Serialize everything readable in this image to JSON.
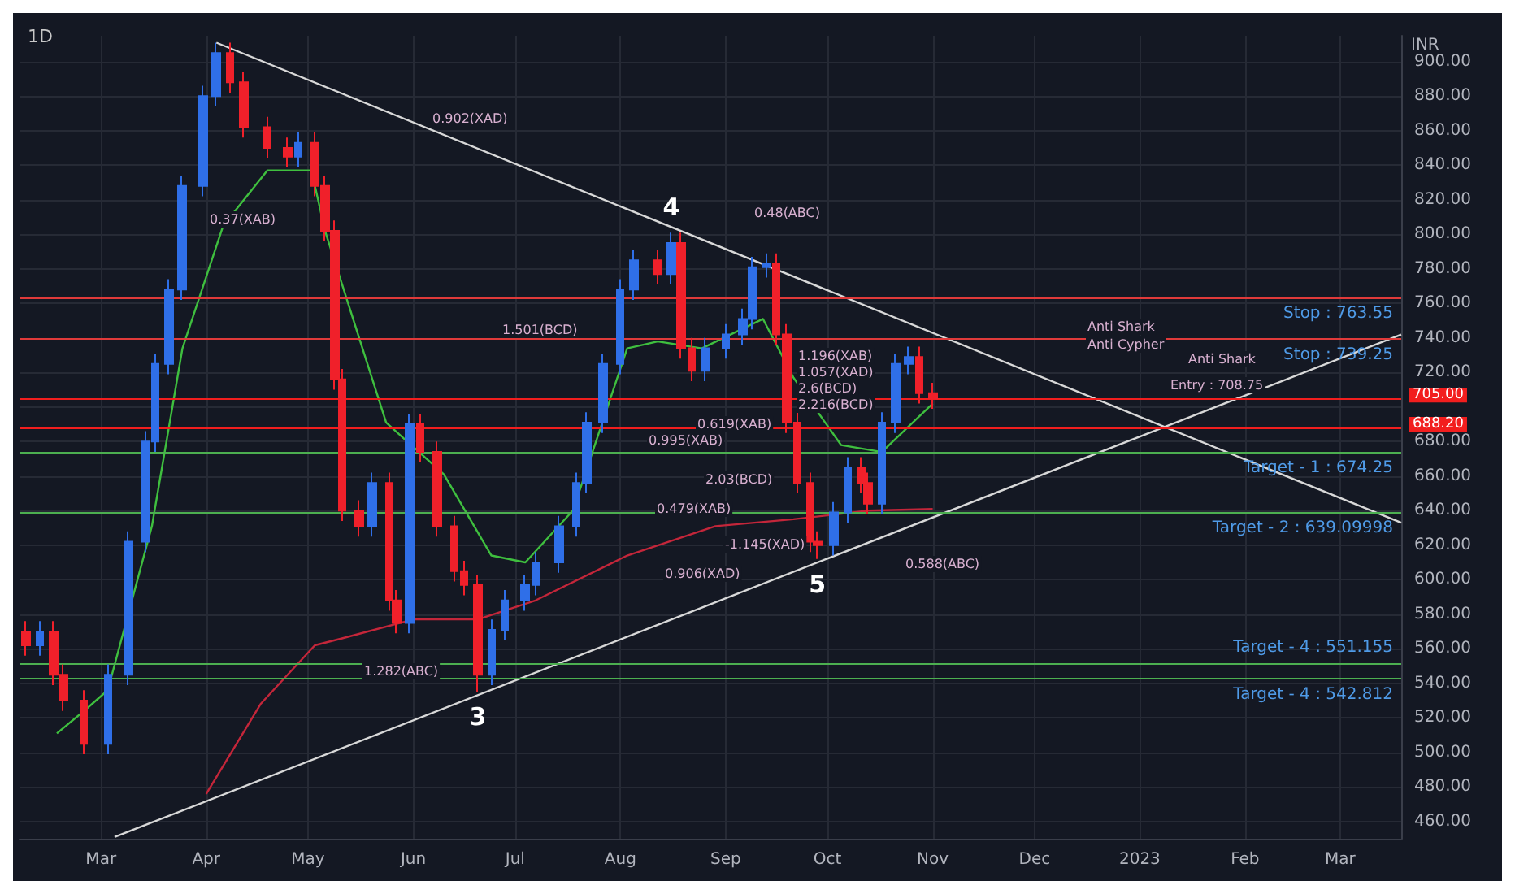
{
  "chart_data": {
    "type": "candlestick",
    "title": "1D",
    "ylabel": "INR",
    "x": [
      "2022-02-07",
      "2022-02-11",
      "2022-02-15",
      "2022-02-18",
      "2022-02-24",
      "2022-03-03",
      "2022-03-09",
      "2022-03-14",
      "2022-03-17",
      "2022-03-21",
      "2022-03-25",
      "2022-03-31",
      "2022-04-04",
      "2022-04-08",
      "2022-04-12",
      "2022-04-19",
      "2022-04-25",
      "2022-04-28",
      "2022-05-03",
      "2022-05-06",
      "2022-05-09",
      "2022-05-11",
      "2022-05-16",
      "2022-05-20",
      "2022-05-25",
      "2022-05-27",
      "2022-05-31",
      "2022-06-03",
      "2022-06-08",
      "2022-06-13",
      "2022-06-16",
      "2022-06-20",
      "2022-06-24",
      "2022-06-28",
      "2022-07-04",
      "2022-07-07",
      "2022-07-14",
      "2022-07-19",
      "2022-07-22",
      "2022-07-27",
      "2022-08-01",
      "2022-08-05",
      "2022-08-12",
      "2022-08-16",
      "2022-08-19",
      "2022-08-22",
      "2022-08-26",
      "2022-09-01",
      "2022-09-06",
      "2022-09-09",
      "2022-09-13",
      "2022-09-16",
      "2022-09-19",
      "2022-09-22",
      "2022-09-26",
      "2022-09-28",
      "2022-10-03",
      "2022-10-07",
      "2022-10-11",
      "2022-10-13",
      "2022-10-17",
      "2022-10-21",
      "2022-10-25",
      "2022-10-28",
      "2022-11-01"
    ],
    "series": [
      {
        "ohlc": [
          [
            570,
            576,
            556,
            562
          ],
          [
            562,
            576,
            556,
            570
          ],
          [
            570,
            576,
            539,
            545
          ],
          [
            545,
            551,
            524,
            530
          ],
          [
            530,
            536,
            499,
            505
          ],
          [
            505,
            551,
            499,
            545
          ],
          [
            545,
            628,
            539,
            622
          ],
          [
            622,
            686,
            616,
            680
          ],
          [
            680,
            731,
            674,
            725
          ],
          [
            725,
            774,
            719,
            768
          ],
          [
            768,
            834,
            762,
            828
          ],
          [
            828,
            886,
            822,
            880
          ],
          [
            880,
            911,
            874,
            905
          ],
          [
            905,
            911,
            882,
            888
          ],
          [
            888,
            894,
            856,
            862
          ],
          [
            862,
            868,
            844,
            850
          ],
          [
            850,
            856,
            839,
            845
          ],
          [
            845,
            859,
            839,
            853
          ],
          [
            853,
            859,
            822,
            828
          ],
          [
            828,
            834,
            796,
            802
          ],
          [
            802,
            808,
            710,
            716
          ],
          [
            716,
            722,
            634,
            640
          ],
          [
            640,
            646,
            625,
            631
          ],
          [
            631,
            662,
            625,
            656
          ],
          [
            656,
            662,
            582,
            588
          ],
          [
            588,
            594,
            569,
            575
          ],
          [
            575,
            696,
            569,
            690
          ],
          [
            690,
            696,
            668,
            674
          ],
          [
            674,
            680,
            625,
            631
          ],
          [
            631,
            637,
            599,
            605
          ],
          [
            605,
            611,
            591,
            597
          ],
          [
            597,
            603,
            535,
            545
          ],
          [
            545,
            577,
            539,
            571
          ],
          [
            571,
            594,
            565,
            588
          ],
          [
            588,
            603,
            582,
            597
          ],
          [
            597,
            616,
            591,
            610
          ],
          [
            610,
            637,
            604,
            631
          ],
          [
            631,
            662,
            625,
            656
          ],
          [
            656,
            697,
            650,
            691
          ],
          [
            691,
            731,
            685,
            725
          ],
          [
            725,
            774,
            719,
            768
          ],
          [
            768,
            791,
            762,
            785
          ],
          [
            785,
            791,
            771,
            777
          ],
          [
            777,
            801,
            771,
            795
          ],
          [
            795,
            801,
            728,
            734
          ],
          [
            734,
            740,
            715,
            721
          ],
          [
            721,
            740,
            715,
            734
          ],
          [
            734,
            748,
            728,
            742
          ],
          [
            742,
            757,
            736,
            751
          ],
          [
            751,
            787,
            745,
            781
          ],
          [
            781,
            789,
            775,
            783
          ],
          [
            783,
            789,
            736,
            742
          ],
          [
            742,
            748,
            685,
            691
          ],
          [
            691,
            697,
            650,
            656
          ],
          [
            656,
            662,
            616,
            622
          ],
          [
            622,
            628,
            612,
            620
          ],
          [
            620,
            645,
            614,
            639
          ],
          [
            639,
            671,
            633,
            665
          ],
          [
            665,
            671,
            650,
            656
          ],
          [
            656,
            662,
            638,
            644
          ],
          [
            644,
            697,
            638,
            691
          ],
          [
            691,
            731,
            685,
            725
          ],
          [
            725,
            735,
            719,
            729
          ],
          [
            729,
            735,
            702,
            708
          ],
          [
            708,
            714,
            699,
            705
          ]
        ],
        "colors": [
          "#f0202a",
          "#2f6fe8",
          "#f0202a",
          "#f0202a",
          "#f0202a",
          "#2f6fe8",
          "#2f6fe8",
          "#2f6fe8",
          "#2f6fe8",
          "#2f6fe8",
          "#2f6fe8",
          "#2f6fe8",
          "#2f6fe8",
          "#f0202a",
          "#f0202a",
          "#f0202a",
          "#f0202a",
          "#2f6fe8",
          "#f0202a",
          "#f0202a",
          "#f0202a",
          "#f0202a",
          "#f0202a",
          "#2f6fe8",
          "#f0202a",
          "#f0202a",
          "#2f6fe8",
          "#f0202a",
          "#f0202a",
          "#f0202a",
          "#f0202a",
          "#f0202a",
          "#2f6fe8",
          "#2f6fe8",
          "#2f6fe8",
          "#2f6fe8",
          "#2f6fe8",
          "#2f6fe8",
          "#2f6fe8",
          "#2f6fe8",
          "#2f6fe8",
          "#2f6fe8",
          "#f0202a",
          "#2f6fe8",
          "#f0202a",
          "#f0202a",
          "#2f6fe8",
          "#2f6fe8",
          "#2f6fe8",
          "#2f6fe8",
          "#2f6fe8",
          "#f0202a",
          "#f0202a",
          "#f0202a",
          "#f0202a",
          "#f0202a",
          "#2f6fe8",
          "#2f6fe8",
          "#f0202a",
          "#f0202a",
          "#2f6fe8",
          "#2f6fe8",
          "#2f6fe8",
          "#f0202a",
          "#f0202a"
        ]
      },
      {
        "type": "line",
        "color": "#3fbf3f",
        "x": [
          "2022-02-16",
          "2022-02-24",
          "2022-03-03",
          "2022-03-16",
          "2022-03-25",
          "2022-04-06",
          "2022-04-19",
          "2022-05-02",
          "2022-05-06",
          "2022-05-24",
          "2022-06-10",
          "2022-06-24",
          "2022-07-04",
          "2022-07-18",
          "2022-08-03",
          "2022-08-12",
          "2022-08-25",
          "2022-09-12",
          "2022-09-21",
          "2022-10-05",
          "2022-10-17",
          "2022-11-01"
        ],
        "values": [
          511,
          524,
          536,
          631,
          734,
          805,
          837,
          837,
          802,
          691,
          661,
          614,
          610,
          640,
          734,
          738,
          734,
          751,
          717,
          678,
          674,
          702
        ]
      },
      {
        "type": "line",
        "color": "#c4263a",
        "x": [
          "2022-04-01",
          "2022-04-17",
          "2022-05-03",
          "2022-05-11",
          "2022-06-01",
          "2022-06-20",
          "2022-07-07",
          "2022-08-03",
          "2022-08-29",
          "2022-09-21",
          "2022-10-13",
          "2022-11-01"
        ],
        "values": [
          476,
          528,
          562,
          566,
          577,
          577,
          588,
          614,
          631,
          635,
          640,
          641
        ]
      },
      {
        "type": "line",
        "color": "#d8d8d8",
        "x": [
          "2022-04-04",
          "2023-03-19"
        ],
        "values": [
          911,
          633
        ]
      },
      {
        "type": "line",
        "color": "#d8d8d8",
        "x": [
          "2022-03-05",
          "2023-03-19"
        ],
        "values": [
          451,
          742
        ]
      }
    ],
    "xlim": [
      "2022-02-05",
      "2023-03-19"
    ],
    "xticks": [
      {
        "value": "2022-03-01",
        "label": "Mar"
      },
      {
        "value": "2022-04-01",
        "label": "Apr"
      },
      {
        "value": "2022-05-01",
        "label": "May"
      },
      {
        "value": "2022-06-01",
        "label": "Jun"
      },
      {
        "value": "2022-07-01",
        "label": "Jul"
      },
      {
        "value": "2022-08-01",
        "label": "Aug"
      },
      {
        "value": "2022-09-01",
        "label": "Sep"
      },
      {
        "value": "2022-10-01",
        "label": "Oct"
      },
      {
        "value": "2022-11-01",
        "label": "Nov"
      },
      {
        "value": "2022-12-01",
        "label": "Dec"
      },
      {
        "value": "2023-01-01",
        "label": "2023"
      },
      {
        "value": "2023-02-01",
        "label": "Feb"
      },
      {
        "value": "2023-03-01",
        "label": "Mar"
      }
    ],
    "ylim": [
      450,
      915
    ],
    "yticks": [
      {
        "value": 460,
        "label": "460.00"
      },
      {
        "value": 480,
        "label": "480.00"
      },
      {
        "value": 500,
        "label": "500.00"
      },
      {
        "value": 520,
        "label": "520.00"
      },
      {
        "value": 540,
        "label": "540.00"
      },
      {
        "value": 560,
        "label": "560.00"
      },
      {
        "value": 580,
        "label": "580.00"
      },
      {
        "value": 600,
        "label": "600.00"
      },
      {
        "value": 620,
        "label": "620.00"
      },
      {
        "value": 640,
        "label": "640.00"
      },
      {
        "value": 660,
        "label": "660.00"
      },
      {
        "value": 680,
        "label": "680.00"
      },
      {
        "value": 700,
        "label": null
      },
      {
        "value": 720,
        "label": "720.00"
      },
      {
        "value": 740,
        "label": "740.00"
      },
      {
        "value": 760,
        "label": "760.00"
      },
      {
        "value": 780,
        "label": "780.00"
      },
      {
        "value": 800,
        "label": "800.00"
      },
      {
        "value": 820,
        "label": "820.00"
      },
      {
        "value": 840,
        "label": "840.00"
      },
      {
        "value": 860,
        "label": "860.00"
      },
      {
        "value": 880,
        "label": "880.00"
      },
      {
        "value": 900,
        "label": "900.00"
      }
    ],
    "grid": true,
    "ref_lines": [
      {
        "axis": "y",
        "value": 763.55,
        "label": "Stop : 763.55",
        "color": "#e03a3a"
      },
      {
        "axis": "y",
        "value": 739.25,
        "label": "Stop : 739.25",
        "color": "#e03a3a"
      },
      {
        "axis": "y",
        "value": 705,
        "label": "705.00",
        "color": "#f21e1e"
      },
      {
        "axis": "y",
        "value": 688.2,
        "label": "688.20",
        "color": "#f21e1e"
      },
      {
        "axis": "y",
        "value": 674.25,
        "label": "Target - 1 : 674.25",
        "color": "#4caf50"
      },
      {
        "axis": "y",
        "value": 639.09998,
        "label": "Target - 2 : 639.09998",
        "color": "#4caf50"
      },
      {
        "axis": "y",
        "value": 551.155,
        "label": "Target - 4 : 551.155",
        "color": "#4caf50"
      },
      {
        "axis": "y",
        "value": 542.812,
        "label": "Target - 4 : 542.812",
        "color": "#4caf50"
      }
    ],
    "annotations": [
      {
        "text": "3",
        "x": "2022-06-20",
        "y": 535
      },
      {
        "text": "4",
        "x": "2022-08-16",
        "y": 801
      },
      {
        "text": "5",
        "x": "2022-09-28",
        "y": 612
      },
      "0.902(XAD)",
      "0.37(XAB)",
      "1.501(BCD)",
      "1.282(ABC)",
      "0.995(XAB)",
      "0.479(XAB)",
      "2.03(BCD)",
      "-1.145(XAD)",
      "0.906(XAD)",
      "0.48(ABC)",
      "1.196(XAB)",
      "1.057(XAD)",
      "2.6(BCD)",
      "2.216(BCD)",
      "0.619(XAB)",
      "0.588(ABC)",
      "Anti Shark",
      "Anti Cypher",
      "Anti Shark",
      "Entry : 708.75"
    ]
  }
}
